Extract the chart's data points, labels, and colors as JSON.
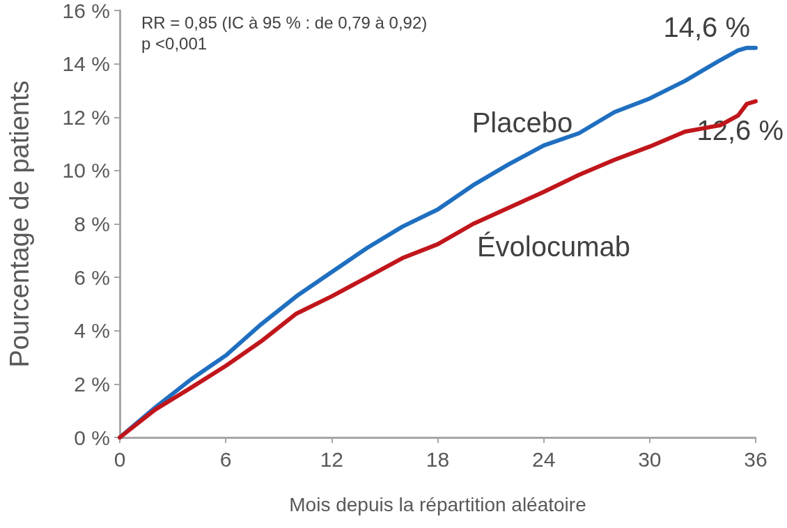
{
  "chart_data": {
    "type": "line",
    "xlabel": "Mois depuis la répartition aléatoire",
    "ylabel": "Pourcentage de patients",
    "xlim": [
      0,
      36
    ],
    "xticks": [
      0,
      6,
      12,
      18,
      24,
      30,
      36
    ],
    "ylim": [
      0,
      16
    ],
    "yticks": [
      {
        "value": 0,
        "label": "0 %"
      },
      {
        "value": 2,
        "label": "2 %"
      },
      {
        "value": 4,
        "label": "4 %"
      },
      {
        "value": 6,
        "label": "6 %"
      },
      {
        "value": 8,
        "label": "8 %"
      },
      {
        "value": 10,
        "label": "10 %"
      },
      {
        "value": 12,
        "label": "12 %"
      },
      {
        "value": 14,
        "label": "14 %"
      },
      {
        "value": 16,
        "label": "16 %"
      }
    ],
    "x": [
      0,
      2,
      4,
      6,
      8,
      10,
      12,
      14,
      16,
      18,
      20,
      22,
      24,
      26,
      28,
      30,
      32,
      34,
      35,
      35.5,
      36
    ],
    "series": [
      {
        "name": "Placebo",
        "color": "#1f6fc0",
        "values": [
          0,
          1.12,
          2.16,
          3.07,
          4.24,
          5.29,
          6.2,
          7.1,
          7.9,
          8.54,
          9.45,
          10.23,
          10.94,
          11.4,
          12.19,
          12.7,
          13.36,
          14.14,
          14.5,
          14.6,
          14.6
        ]
      },
      {
        "name": "Évolocumab",
        "color": "#c0161b",
        "values": [
          0,
          1.04,
          1.85,
          2.68,
          3.6,
          4.64,
          5.29,
          6.0,
          6.72,
          7.24,
          8.0,
          8.6,
          9.2,
          9.84,
          10.4,
          10.9,
          11.46,
          11.7,
          12.06,
          12.5,
          12.6
        ]
      }
    ],
    "annotations": [
      "RR = 0,85 (IC à 95 % : de 0,79 à 0,92)",
      "p <0,001",
      {
        "text": "14,6 %",
        "x": 36,
        "y": 14.6
      },
      {
        "text": "12,6 %",
        "x": 36,
        "y": 12.6
      }
    ],
    "grid": false,
    "legend": false,
    "marker": "none",
    "line_style": "solid"
  }
}
